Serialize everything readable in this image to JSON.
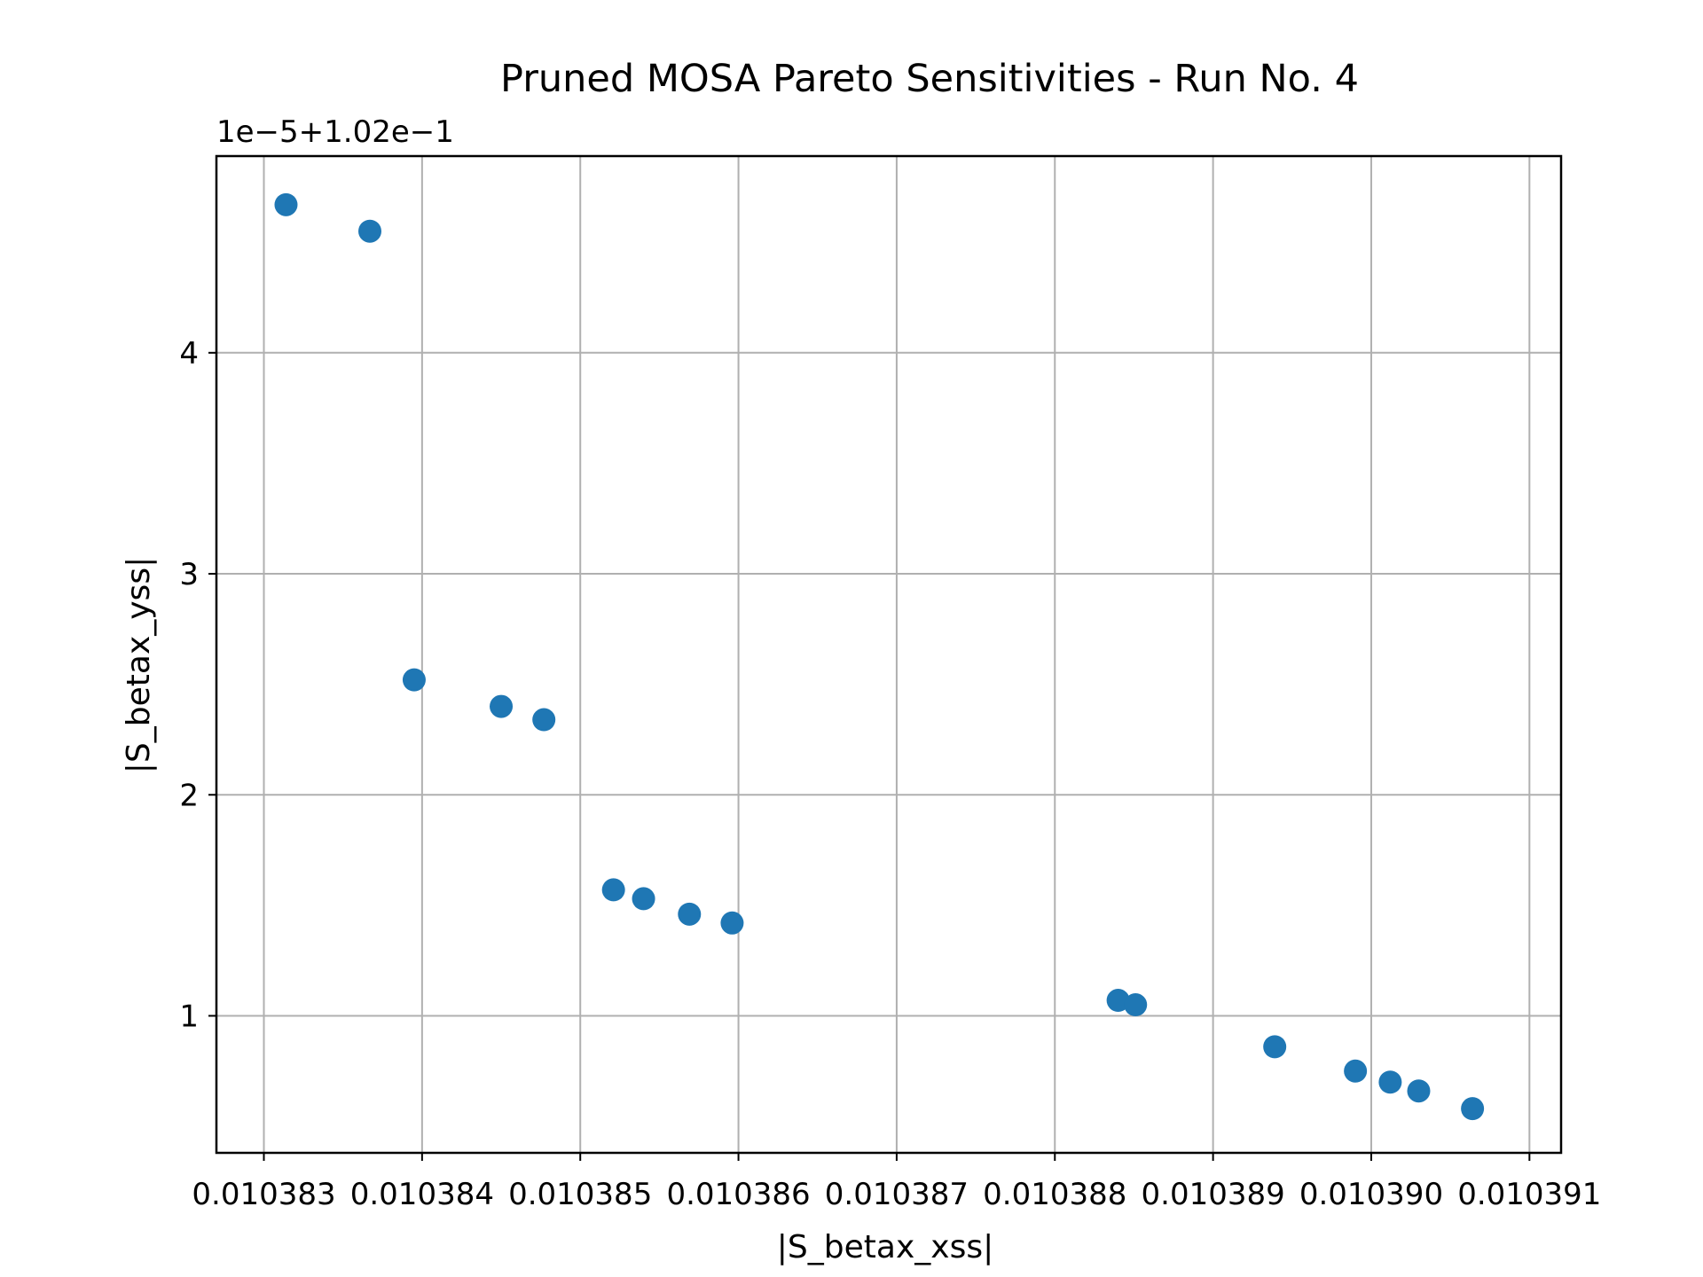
{
  "chart_data": {
    "type": "scatter",
    "title": "Pruned MOSA Pareto Sensitivities - Run No. 4",
    "xlabel": "|S_betax_xss|",
    "ylabel": "|S_betax_yss|",
    "y_offset_label": "1e−5+1.02e−1",
    "xlim": [
      0.0103827,
      0.0103912
    ],
    "ylim": [
      0.38,
      4.89
    ],
    "x_ticks": [
      0.010383,
      0.010384,
      0.010385,
      0.010386,
      0.010387,
      0.010388,
      0.010389,
      0.01039,
      0.010391
    ],
    "x_tick_labels": [
      "0.010383",
      "0.010384",
      "0.010385",
      "0.010386",
      "0.010387",
      "0.010388",
      "0.010389",
      "0.010390",
      "0.010391"
    ],
    "y_ticks": [
      1,
      2,
      3,
      4
    ],
    "y_tick_labels": [
      "1",
      "2",
      "3",
      "4"
    ],
    "grid": true,
    "marker_color": "#1f77b4",
    "series": [
      {
        "x": [
          0.01038314,
          0.01038367,
          0.01038395,
          0.0103845,
          0.01038477,
          0.01038521,
          0.0103854,
          0.01038569,
          0.01038596,
          0.0103884,
          0.01038851,
          0.01038939,
          0.0103899,
          0.01039012,
          0.0103903,
          0.01039064
        ],
        "y": [
          4.67,
          4.55,
          2.52,
          2.4,
          2.34,
          1.57,
          1.53,
          1.46,
          1.42,
          1.07,
          1.05,
          0.86,
          0.75,
          0.7,
          0.66,
          0.58
        ]
      }
    ]
  }
}
